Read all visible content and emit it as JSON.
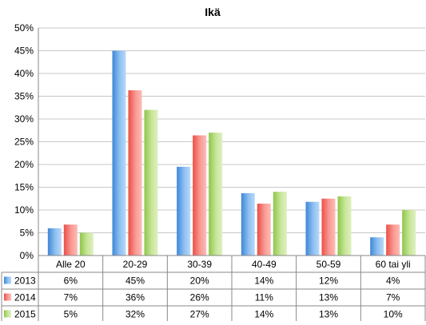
{
  "chart_data": {
    "type": "bar",
    "title": "Ikä",
    "categories": [
      "Alle 20",
      "20-29",
      "30-39",
      "40-49",
      "50-59",
      "60 tai yli"
    ],
    "series": [
      {
        "name": "2013",
        "values": [
          6,
          45,
          19.5,
          13.7,
          11.8,
          4
        ],
        "labels": [
          "6%",
          "45%",
          "20%",
          "14%",
          "12%",
          "4%"
        ],
        "color": "#5b9bd5"
      },
      {
        "name": "2014",
        "values": [
          6.8,
          36.3,
          26.4,
          11.4,
          12.5,
          6.8
        ],
        "labels": [
          "7%",
          "36%",
          "26%",
          "11%",
          "13%",
          "7%"
        ],
        "color": "#f4716a"
      },
      {
        "name": "2015",
        "values": [
          5,
          32,
          27,
          14,
          13,
          10
        ],
        "labels": [
          "5%",
          "32%",
          "27%",
          "14%",
          "13%",
          "10%"
        ],
        "color": "#a5d05a"
      }
    ],
    "ylim": [
      0,
      50
    ],
    "yticks": [
      "0%",
      "5%",
      "10%",
      "15%",
      "20%",
      "25%",
      "30%",
      "35%",
      "40%",
      "45%",
      "50%"
    ],
    "grid": true,
    "legend": "data-table-left"
  }
}
